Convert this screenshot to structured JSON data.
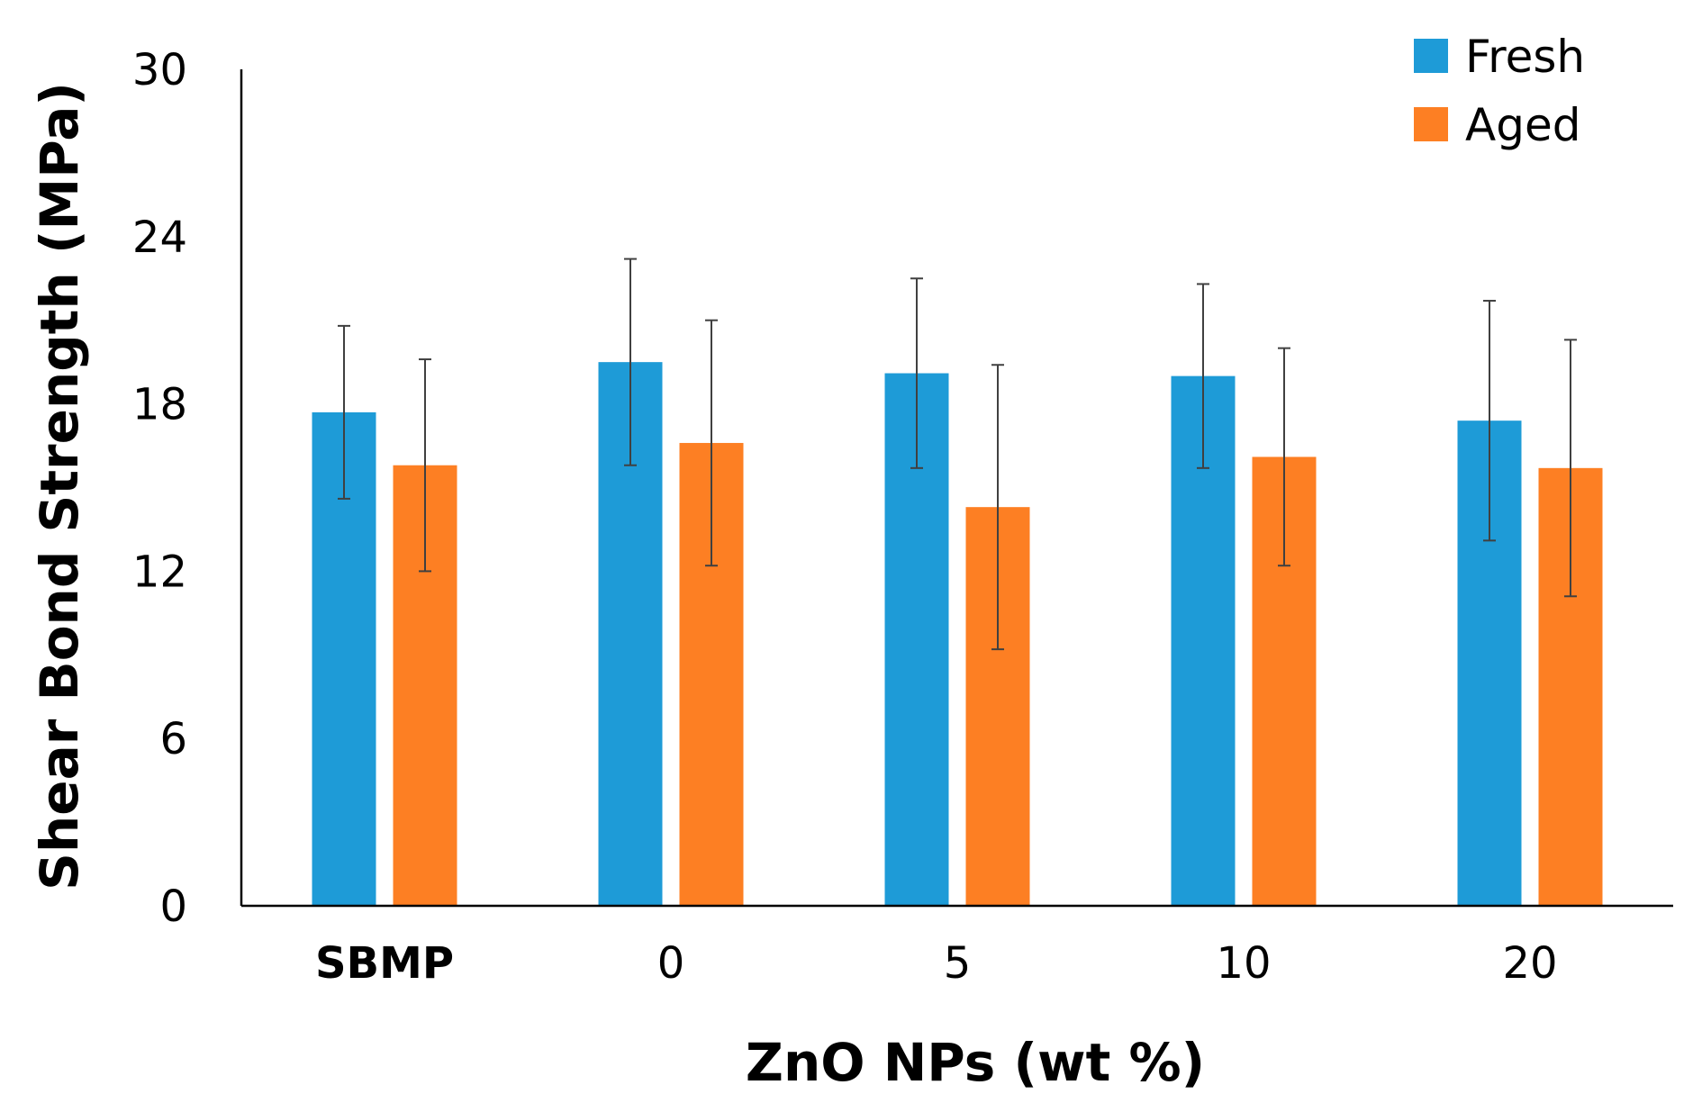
{
  "chart_data": {
    "type": "bar",
    "title": "",
    "xlabel": "ZnO NPs (wt %)",
    "ylabel": "Shear Bond Strength (MPa)",
    "ylim": [
      0,
      30
    ],
    "yticks": [
      0,
      6,
      12,
      18,
      24,
      30
    ],
    "categories": [
      "SBMP",
      "0",
      "5",
      "10",
      "20"
    ],
    "grid": false,
    "legend_position": "top-right",
    "series": [
      {
        "name": "Fresh",
        "color": "#1e9bd7",
        "values": [
          17.7,
          19.5,
          19.1,
          19.0,
          17.4
        ],
        "errors": [
          3.1,
          3.7,
          3.4,
          3.3,
          4.3
        ]
      },
      {
        "name": "Aged",
        "color": "#fd7f23",
        "values": [
          15.8,
          16.6,
          14.3,
          16.1,
          15.7
        ],
        "errors": [
          3.8,
          4.4,
          5.1,
          3.9,
          4.6
        ]
      }
    ]
  }
}
